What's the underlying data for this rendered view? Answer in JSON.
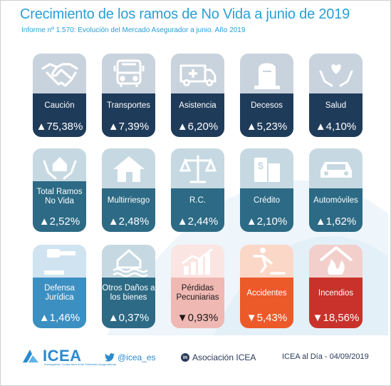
{
  "header": {
    "title": "Crecimiento de los ramos de No Vida a junio de 2019",
    "subtitle": "Informe nº 1.570: Evolución del Mercado Asegurador a junio. Año 2019"
  },
  "colors": {
    "navy": "#1f3b5a",
    "teal": "#2c6a85",
    "blue": "#3c8fc1",
    "pink": "#f0b8b3",
    "orange": "#ec5a2a",
    "red": "#c8322a",
    "title": "#2a9fd6"
  },
  "cards": [
    {
      "label": "Caución",
      "value": "▲75,38%",
      "icon": "handshake-icon"
    },
    {
      "label": "Transportes",
      "value": "▲7,39%",
      "icon": "bus-icon"
    },
    {
      "label": "Asistencia",
      "value": "▲6,20%",
      "icon": "ambulance-icon"
    },
    {
      "label": "Decesos",
      "value": "▲5,23%",
      "icon": "tombstone-icon"
    },
    {
      "label": "Salud",
      "value": "▲4,10%",
      "icon": "heart-hands-icon"
    },
    {
      "label": "Total Ramos No Vida",
      "value": "▲2,52%",
      "icon": "house-hands-icon"
    },
    {
      "label": "Multirriesgo",
      "value": "▲2,48%",
      "icon": "house-icon"
    },
    {
      "label": "R.C.",
      "value": "▲2,44%",
      "icon": "scales-icon"
    },
    {
      "label": "Crédito",
      "value": "▲2,10%",
      "icon": "bank-building-icon"
    },
    {
      "label": "Automóviles",
      "value": "▲1,62%",
      "icon": "car-icon"
    },
    {
      "label": "Defensa Jurídica",
      "value": "▲1,46%",
      "icon": "gavel-icon"
    },
    {
      "label": "Otros Daños a los bienes",
      "value": "▲0,37%",
      "icon": "flooded-house-icon"
    },
    {
      "label": "Pérdidas Pecuniarias",
      "value": "▼0,93%",
      "icon": "growth-chart-icon"
    },
    {
      "label": "Accidentes",
      "value": "▼5,43%",
      "icon": "falling-person-icon"
    },
    {
      "label": "Incendios",
      "value": "▼18,56%",
      "icon": "fire-house-icon"
    }
  ],
  "footer": {
    "logo": "ICEA",
    "logo_sub": "Investigación Cooperativa entre Entidades Aseguradoras",
    "twitter": "@icea_es",
    "linkedin_badge": "in",
    "linkedin": "Asociación ICEA",
    "date": "ICEA al Día - 04/09/2019"
  }
}
